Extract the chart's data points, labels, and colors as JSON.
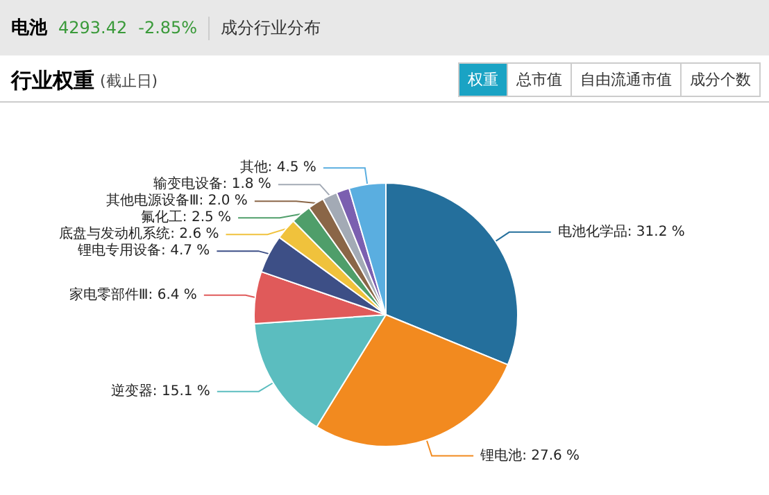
{
  "chart_data": {
    "type": "pie",
    "title": "行业权重",
    "subtitle": "(截止日)",
    "annotations": [
      "电池",
      "4293.42",
      "-2.85%",
      "成分行业分布",
      "权重",
      "总市值",
      "自由流通市值",
      "成分个数"
    ],
    "categories": [
      "电池化学品",
      "锂电池",
      "逆变器",
      "家电零部件Ⅲ",
      "锂电专用设备",
      "底盘与发动机系统",
      "氟化工",
      "其他电源设备Ⅲ",
      "输变电设备",
      null,
      "其他"
    ],
    "values": [
      31.2,
      27.6,
      15.1,
      6.4,
      4.7,
      2.6,
      2.5,
      2.0,
      1.8,
      1.6,
      4.5
    ],
    "value_labels": [
      "31.2 %",
      "27.6 %",
      "15.1 %",
      "6.4 %",
      "4.7 %",
      "2.6 %",
      "2.5 %",
      "2.0 %",
      "1.8 %",
      null,
      "4.5 %"
    ],
    "colors": [
      "#246f9c",
      "#f28a1f",
      "#5bbdbf",
      "#e05a5a",
      "#3d4f86",
      "#f0c23c",
      "#4f9e6a",
      "#8a6647",
      "#a3aab5",
      "#7b5fb0",
      "#5aaee0"
    ],
    "legend": false
  }
}
